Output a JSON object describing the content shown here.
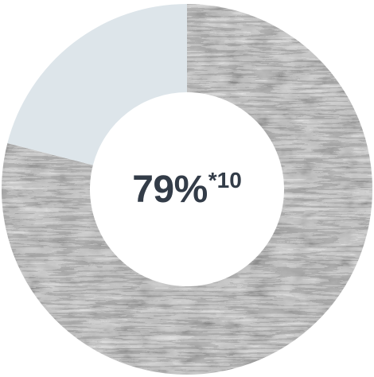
{
  "chart_data": {
    "type": "pie",
    "style": "donut",
    "slices": [
      {
        "value": 79,
        "fill": "histology-texture"
      },
      {
        "value": 21,
        "fill": "#dde5ea"
      }
    ],
    "center_value": "79%",
    "center_footnote": "*10",
    "colors": {
      "remainder": "#dde5ea",
      "texture_base": "#8f8f8f",
      "texture_dark": "#3c3c3c",
      "texture_light": "#d9d9d9",
      "label": "#333c48"
    }
  }
}
